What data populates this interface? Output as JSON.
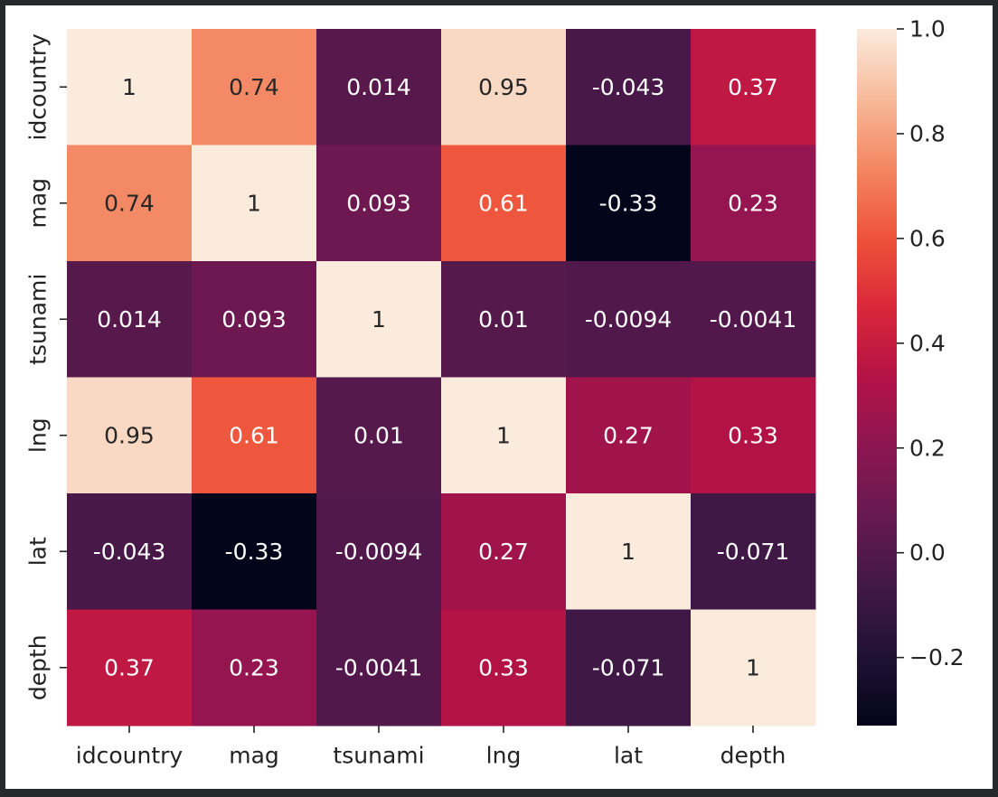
{
  "chart_data": {
    "type": "heatmap",
    "title": "",
    "xlabel": "",
    "ylabel": "",
    "x_categories": [
      "idcountry",
      "mag",
      "tsunami",
      "lng",
      "lat",
      "depth"
    ],
    "y_categories": [
      "idcountry",
      "mag",
      "tsunami",
      "lng",
      "lat",
      "depth"
    ],
    "values": [
      [
        1,
        0.74,
        0.014,
        0.95,
        -0.043,
        0.37
      ],
      [
        0.74,
        1,
        0.093,
        0.61,
        -0.33,
        0.23
      ],
      [
        0.014,
        0.093,
        1,
        0.01,
        -0.0094,
        -0.0041
      ],
      [
        0.95,
        0.61,
        0.01,
        1,
        0.27,
        0.33
      ],
      [
        -0.043,
        -0.33,
        -0.0094,
        0.27,
        1,
        -0.071
      ],
      [
        0.37,
        0.23,
        -0.0041,
        0.33,
        -0.071,
        1
      ]
    ],
    "annotations": [
      [
        "1",
        "0.74",
        "0.014",
        "0.95",
        "-0.043",
        "0.37"
      ],
      [
        "0.74",
        "1",
        "0.093",
        "0.61",
        "-0.33",
        "0.23"
      ],
      [
        "0.014",
        "0.093",
        "1",
        "0.01",
        "-0.0094",
        "-0.0041"
      ],
      [
        "0.95",
        "0.61",
        "0.01",
        "1",
        "0.27",
        "0.33"
      ],
      [
        "-0.043",
        "-0.33",
        "-0.0094",
        "0.27",
        "1",
        "-0.071"
      ],
      [
        "0.37",
        "0.23",
        "-0.0041",
        "0.33",
        "-0.071",
        "1"
      ]
    ],
    "value_range": [
      -0.33,
      1.0
    ],
    "colormap": "rocket",
    "colorbar": {
      "ticks": [
        1.0,
        0.8,
        0.6,
        0.4,
        0.2,
        0.0,
        -0.2
      ],
      "tick_labels": [
        "1.0",
        "0.8",
        "0.6",
        "0.4",
        "0.2",
        "0.0",
        "−0.2"
      ]
    },
    "grid": false,
    "legend": "colorbar-right"
  }
}
